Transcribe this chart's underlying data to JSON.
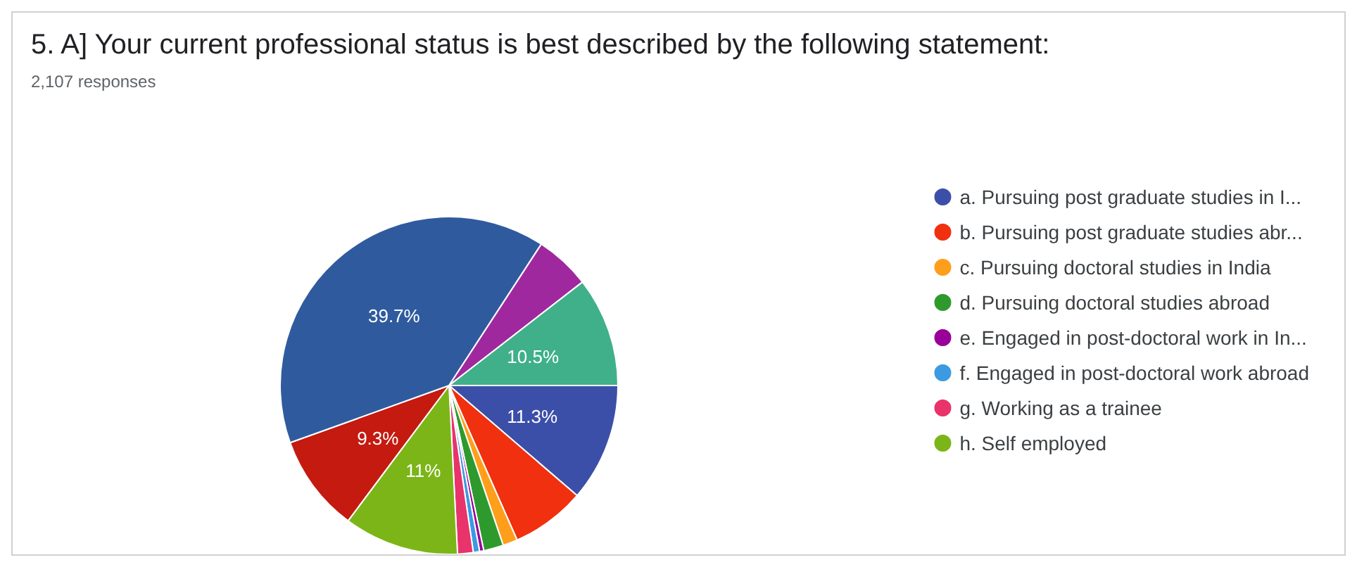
{
  "chart_data": {
    "type": "pie",
    "title": "5. A] Your current professional status is best described by the following statement:",
    "subtitle": "2,107 responses",
    "categories": [
      "a. Pursuing post graduate studies in I...",
      "b. Pursuing post graduate studies abr...",
      "c. Pursuing doctoral studies in India",
      "d. Pursuing doctoral studies abroad",
      "e. Engaged in post-doctoral work in In...",
      "f. Engaged in post-doctoral work abroad",
      "g. Working as a trainee",
      "h. Self employed",
      null,
      null,
      null,
      null
    ],
    "values": [
      11.3,
      7.1,
      1.4,
      1.9,
      0.4,
      0.6,
      1.5,
      11,
      9.3,
      39.7,
      5.3,
      10.5
    ],
    "value_labels": [
      "11.3%",
      null,
      null,
      null,
      null,
      null,
      null,
      "11%",
      "9.3%",
      "39.7%",
      null,
      "10.5%"
    ],
    "colors": [
      "#3c4fa8",
      "#f0300f",
      "#ff9e1b",
      "#2e9a2e",
      "#990099",
      "#3b9ae1",
      "#e8336b",
      "#7cb518",
      "#c41a10",
      "#2f5b9e",
      "#a0289e",
      "#3fb08a"
    ],
    "legend": "right"
  }
}
